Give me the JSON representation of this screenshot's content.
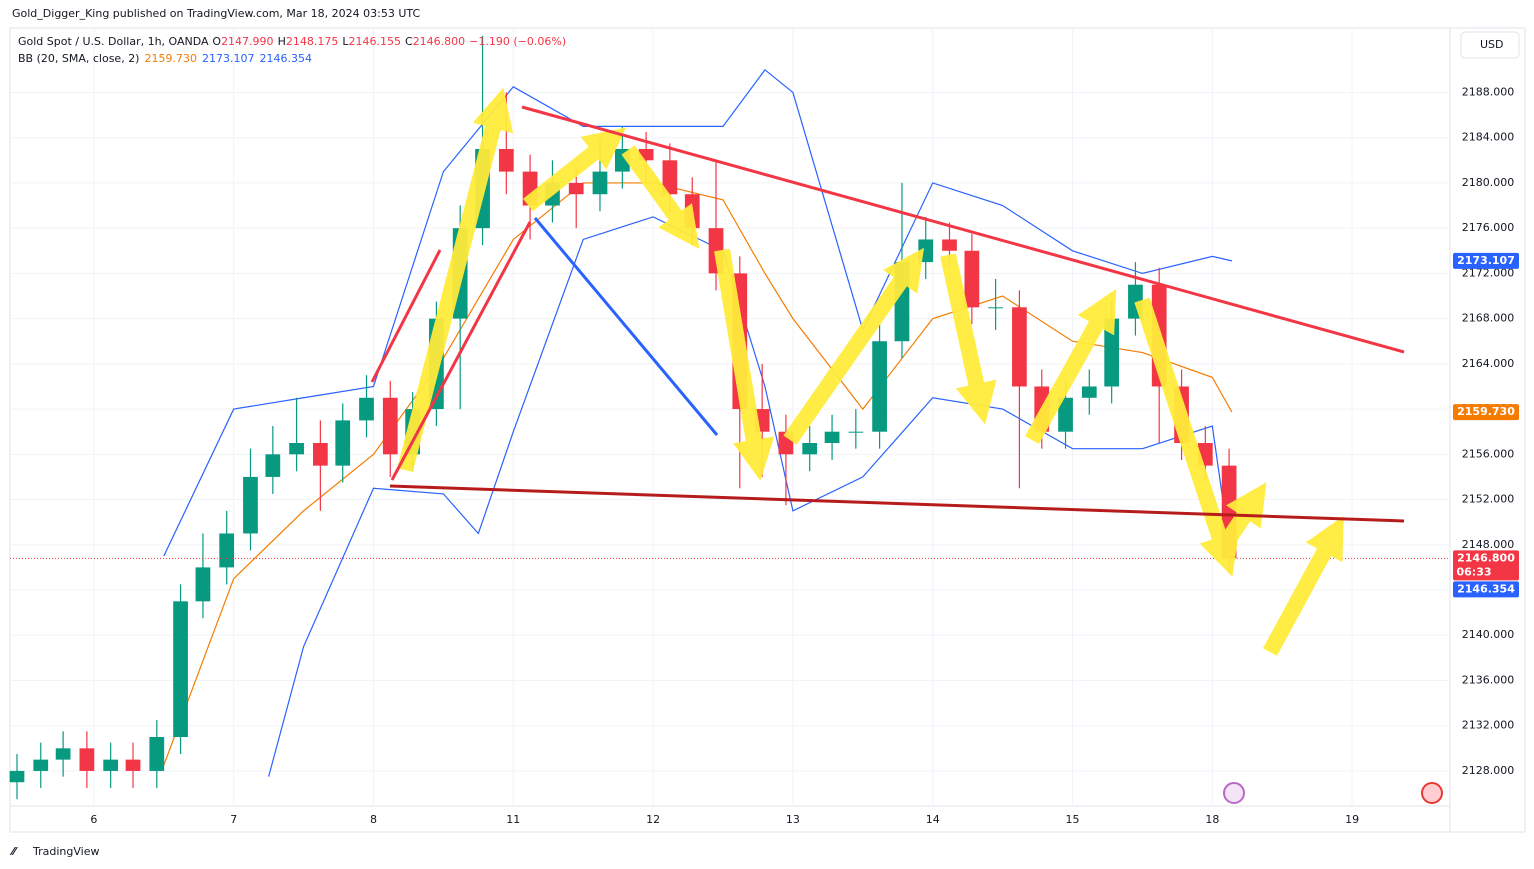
{
  "header": {
    "published": "Gold_Digger_King published on TradingView.com, Mar 18, 2024 03:53 UTC",
    "symbol": "Gold Spot / U.S. Dollar, 1h, OANDA",
    "ohlc": [
      {
        "key": "O",
        "value": "2147.990"
      },
      {
        "key": "H",
        "value": "2148.175"
      },
      {
        "key": "L",
        "value": "2146.155"
      },
      {
        "key": "C",
        "value": "2146.800"
      }
    ],
    "change": "−1.190 (−0.06%)",
    "indicator": "BB (20, SMA, close, 2)",
    "indicator_values": [
      "2159.730",
      "2173.107",
      "2146.354"
    ],
    "currency": "USD",
    "countdown": "06:33",
    "brand": "TradingView"
  },
  "chart_data": {
    "type": "candlestick",
    "up_color": "#089981",
    "down_color": "#f23645",
    "xlim": [
      0.4,
      10.7
    ],
    "xticks": [
      {
        "value": 1,
        "label": "6"
      },
      {
        "value": 2,
        "label": "7"
      },
      {
        "value": 3,
        "label": "8"
      },
      {
        "value": 4,
        "label": "11"
      },
      {
        "value": 5,
        "label": "12"
      },
      {
        "value": 6,
        "label": "13"
      },
      {
        "value": 7,
        "label": "14"
      },
      {
        "value": 8,
        "label": "15"
      },
      {
        "value": 9,
        "label": "18"
      },
      {
        "value": 10,
        "label": "19"
      }
    ],
    "ylim": [
      2124.9,
      2193.7
    ],
    "yticks": [
      {
        "value": 2128,
        "label": "2128.000"
      },
      {
        "value": 2132,
        "label": "2132.000"
      },
      {
        "value": 2136,
        "label": "2136.000"
      },
      {
        "value": 2140,
        "label": "2140.000"
      },
      {
        "value": 2144,
        "label": "2144.000"
      },
      {
        "value": 2148,
        "label": "2148.000"
      },
      {
        "value": 2152,
        "label": "2152.000"
      },
      {
        "value": 2156,
        "label": "2156.000"
      },
      {
        "value": 2160,
        "label": "2160.000"
      },
      {
        "value": 2164,
        "label": "2164.000"
      },
      {
        "value": 2168,
        "label": "2168.000"
      },
      {
        "value": 2172,
        "label": "2172.000"
      },
      {
        "value": 2176,
        "label": "2176.000"
      },
      {
        "value": 2180,
        "label": "2180.000"
      },
      {
        "value": 2184,
        "label": "2184.000"
      },
      {
        "value": 2188,
        "label": "2188.000"
      }
    ],
    "grid": true,
    "x": [
      0.45,
      0.62,
      0.78,
      0.95,
      1.12,
      1.28,
      1.45,
      1.62,
      1.78,
      1.95,
      2.12,
      2.28,
      2.45,
      2.62,
      2.78,
      2.95,
      3.12,
      3.28,
      3.45,
      3.62,
      3.78,
      3.95,
      4.12,
      4.28,
      4.45,
      4.62,
      4.78,
      4.95,
      5.12,
      5.28,
      5.45,
      5.62,
      5.78,
      5.95,
      6.12,
      6.28,
      6.45,
      6.62,
      6.78,
      6.95,
      7.12,
      7.28,
      7.45,
      7.62,
      7.78,
      7.95,
      8.12,
      8.28,
      8.45,
      8.62,
      8.78,
      8.95,
      9.12
    ],
    "open": [
      2127,
      2128,
      2129,
      2130,
      2128,
      2129,
      2128,
      2131,
      2143,
      2146,
      2149,
      2154,
      2156,
      2157,
      2155,
      2159,
      2161,
      2156,
      2160,
      2168,
      2176,
      2183,
      2181,
      2178,
      2180,
      2179,
      2181,
      2183,
      2182,
      2179,
      2176,
      2172,
      2160,
      2158,
      2156,
      2157,
      2158,
      2158,
      2166,
      2173,
      2175,
      2174,
      2169,
      2169,
      2162,
      2158,
      2161,
      2162,
      2168,
      2171,
      2162,
      2157,
      2155
    ],
    "high": [
      2129.5,
      2130.5,
      2131.5,
      2131.5,
      2130.5,
      2130.5,
      2132.5,
      2144.5,
      2149,
      2151,
      2156.5,
      2158.5,
      2161,
      2159,
      2160.5,
      2163,
      2162.5,
      2161.5,
      2169.5,
      2178,
      2193,
      2188,
      2182.5,
      2182,
      2181.5,
      2184,
      2185,
      2184.5,
      2183.5,
      2180.5,
      2182,
      2173.5,
      2164,
      2159.5,
      2158.5,
      2159.5,
      2160,
      2167.5,
      2180,
      2177,
      2176.5,
      2175.5,
      2171.5,
      2170.5,
      2163.5,
      2162.5,
      2163.5,
      2169.5,
      2173,
      2172.5,
      2163.5,
      2158.5,
      2156.5
    ],
    "low": [
      2125.5,
      2126.5,
      2127.5,
      2126.5,
      2126.5,
      2126.5,
      2126.5,
      2129.5,
      2141.5,
      2144.5,
      2147.5,
      2152.5,
      2154.5,
      2151,
      2153.5,
      2157.5,
      2154,
      2154.5,
      2158.5,
      2160,
      2174.5,
      2179,
      2175,
      2176.5,
      2176,
      2177.5,
      2179.5,
      2180,
      2177.5,
      2174.5,
      2170.5,
      2153,
      2154,
      2151.5,
      2154.5,
      2155.5,
      2156.5,
      2156.5,
      2164.5,
      2171.5,
      2172.5,
      2167.5,
      2167,
      2153,
      2156.5,
      2156.5,
      2159.5,
      2160.5,
      2166.5,
      2157,
      2155.5,
      2153.5,
      2145.5
    ],
    "close": [
      2128,
      2129,
      2130,
      2128,
      2129,
      2128,
      2131,
      2143,
      2146,
      2149,
      2154,
      2156,
      2157,
      2155,
      2159,
      2161,
      2156,
      2160,
      2168,
      2176,
      2183,
      2181,
      2178,
      2180,
      2179,
      2181,
      2183,
      2182,
      2179,
      2176,
      2172,
      2160,
      2158,
      2156,
      2157,
      2158,
      2158,
      2166,
      2173,
      2175,
      2174,
      2169,
      2169,
      2162,
      2158,
      2161,
      2162,
      2168,
      2171,
      2162,
      2157,
      2155,
      2146.8
    ],
    "bands": [
      {
        "color": "#f57c00",
        "x": [
          1.5,
          2,
          2.5,
          3,
          3.5,
          4,
          4.5,
          5,
          5.5,
          5.8,
          6,
          6.5,
          7,
          7.5,
          8,
          8.5,
          9,
          9.14
        ],
        "values": [
          2128.5,
          2145,
          2151,
          2156,
          2164.5,
          2175,
          2180,
          2180,
          2178.5,
          2172,
          2168,
          2160,
          2168,
          2170,
          2166,
          2165,
          2162.8,
          2159.73
        ]
      },
      {
        "color": "#2962ff",
        "x": [
          1.5,
          2,
          2.5,
          3,
          3.5,
          4,
          4.5,
          5,
          5.5,
          5.8,
          6,
          6.5,
          7,
          7.5,
          8,
          8.5,
          9,
          9.14
        ],
        "values": [
          2147,
          2160,
          2161,
          2162,
          2181,
          2188.5,
          2185,
          2185,
          2185,
          2190,
          2188,
          2167,
          2180,
          2178,
          2174,
          2172,
          2173.5,
          2173.107
        ]
      },
      {
        "color": "#2962ff",
        "x": [
          2.25,
          2.5,
          3,
          3.5,
          3.75,
          4,
          4.5,
          5,
          5.5,
          5.8,
          6,
          6.5,
          7,
          7.5,
          8,
          8.5,
          9,
          9.14
        ],
        "values": [
          2127.5,
          2139,
          2153,
          2152.5,
          2149,
          2158,
          2175,
          2177,
          2174,
          2162,
          2151,
          2154,
          2161,
          2160,
          2156.5,
          2156.5,
          2158.5,
          2146.354
        ]
      }
    ],
    "price_tags": [
      {
        "value": 2173.107,
        "label": "2173.107",
        "color": "#2962ff"
      },
      {
        "value": 2159.73,
        "label": "2159.730",
        "color": "#f57c00"
      },
      {
        "value": 2146.8,
        "label": "2146.800",
        "color": "#f23645"
      },
      {
        "value": 2146.354,
        "label": "2146.354",
        "color": "#2962ff"
      }
    ]
  }
}
